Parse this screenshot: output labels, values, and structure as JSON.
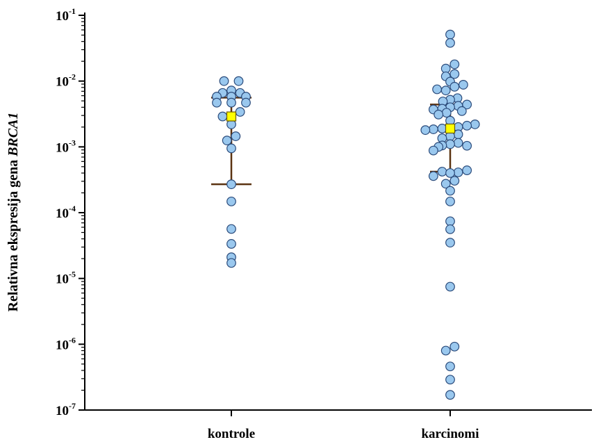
{
  "chart_data": {
    "type": "scatter",
    "y_scale": "log",
    "ylim": [
      1e-07,
      0.1
    ],
    "ylabel": "Relativna ekspresija gena",
    "ylabel_gene": "BRCA1",
    "y_ticks": [
      {
        "base": "10",
        "exp": "-7",
        "value": 1e-07
      },
      {
        "base": "10",
        "exp": "-6",
        "value": 1e-06
      },
      {
        "base": "10",
        "exp": "-5",
        "value": 1e-05
      },
      {
        "base": "10",
        "exp": "-4",
        "value": 0.0001
      },
      {
        "base": "10",
        "exp": "-3",
        "value": 0.001
      },
      {
        "base": "10",
        "exp": "-2",
        "value": 0.01
      },
      {
        "base": "10",
        "exp": "-1",
        "value": 0.1
      }
    ],
    "categories": [
      "kontrole",
      "karcinomi"
    ],
    "point_color": "#9ac8ee",
    "point_stroke": "#2a4a7a",
    "median_color": "#ffff00",
    "iqr_color": "#5a3210",
    "series": [
      {
        "category": "kontrole",
        "median": 0.0029,
        "q1": 0.00027,
        "q3": 0.0056,
        "values": [
          [
            0.01,
            -1
          ],
          [
            0.01,
            1
          ],
          [
            0.0072,
            0
          ],
          [
            0.0066,
            -1.2
          ],
          [
            0.0066,
            1.2
          ],
          [
            0.0058,
            -2
          ],
          [
            0.0058,
            0
          ],
          [
            0.0058,
            2
          ],
          [
            0.0047,
            -2
          ],
          [
            0.0047,
            0
          ],
          [
            0.0047,
            2
          ],
          [
            0.0034,
            1.2
          ],
          [
            0.0029,
            -1.2
          ],
          [
            0.0028,
            0
          ],
          [
            0.0022,
            0
          ],
          [
            0.00145,
            0.6
          ],
          [
            0.00125,
            -0.6
          ],
          [
            0.00095,
            0
          ],
          [
            0.00027,
            0
          ],
          [
            0.000148,
            0
          ],
          [
            5.65e-05,
            0
          ],
          [
            3.35e-05,
            0
          ],
          [
            2.1e-05,
            0
          ],
          [
            1.72e-05,
            0
          ]
        ]
      },
      {
        "category": "karcinomi",
        "median": 0.0019,
        "q1": 0.00042,
        "q3": 0.0044,
        "values": [
          [
            0.051,
            0
          ],
          [
            0.038,
            0
          ],
          [
            0.018,
            0.6
          ],
          [
            0.0155,
            -0.6
          ],
          [
            0.0128,
            0.6
          ],
          [
            0.0118,
            -0.6
          ],
          [
            0.0098,
            0
          ],
          [
            0.0088,
            1.8
          ],
          [
            0.0082,
            0.6
          ],
          [
            0.0075,
            -1.8
          ],
          [
            0.0072,
            -0.6
          ],
          [
            0.0055,
            1
          ],
          [
            0.0052,
            0
          ],
          [
            0.0049,
            -1
          ],
          [
            0.0044,
            2.3
          ],
          [
            0.0042,
            1.1
          ],
          [
            0.004,
            0
          ],
          [
            0.0038,
            -1.1
          ],
          [
            0.0037,
            -2.3
          ],
          [
            0.0035,
            1.6
          ],
          [
            0.0033,
            -0.5
          ],
          [
            0.0031,
            -1.6
          ],
          [
            0.0025,
            0
          ],
          [
            0.0022,
            3.4
          ],
          [
            0.0021,
            2.3
          ],
          [
            0.002,
            1.1
          ],
          [
            0.0019,
            -1.1
          ],
          [
            0.00185,
            -2.3
          ],
          [
            0.0018,
            -3.4
          ],
          [
            0.00155,
            1.1
          ],
          [
            0.00145,
            0
          ],
          [
            0.00135,
            -1.1
          ],
          [
            0.00115,
            1.1
          ],
          [
            0.0011,
            0
          ],
          [
            0.00105,
            -1.1
          ],
          [
            0.00104,
            2.3
          ],
          [
            0.001,
            -1.6
          ],
          [
            0.00088,
            -2.3
          ],
          [
            0.00044,
            2.3
          ],
          [
            0.00042,
            -1.1
          ],
          [
            0.00041,
            1.1
          ],
          [
            0.0004,
            0
          ],
          [
            0.00036,
            -2.3
          ],
          [
            0.000305,
            0.6
          ],
          [
            0.000275,
            -0.6
          ],
          [
            0.000215,
            0
          ],
          [
            0.000148,
            0
          ],
          [
            7.4e-05,
            0
          ],
          [
            5.6e-05,
            0
          ],
          [
            3.5e-05,
            0
          ],
          [
            7.5e-06,
            0
          ],
          [
            9.2e-07,
            0.6
          ],
          [
            8e-07,
            -0.6
          ],
          [
            4.6e-07,
            0
          ],
          [
            2.9e-07,
            0
          ],
          [
            1.7e-07,
            0
          ]
        ]
      }
    ]
  }
}
